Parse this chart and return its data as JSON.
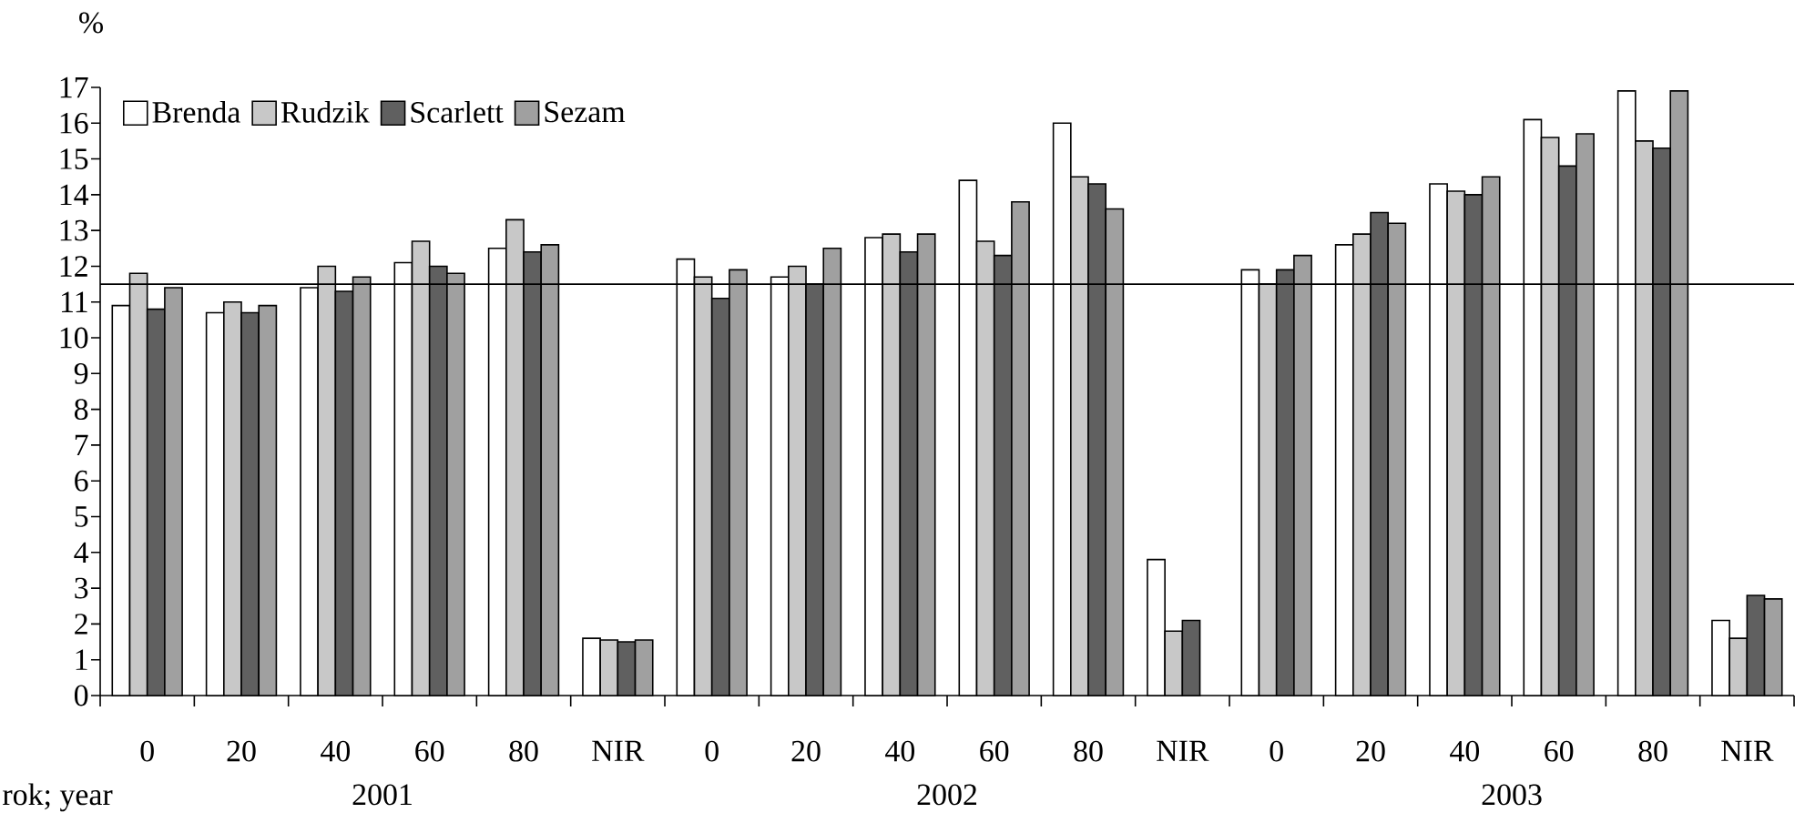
{
  "chart_data": {
    "type": "bar",
    "xlabel": "rok; year",
    "ylabel": "%",
    "categories": [
      "0",
      "20",
      "40",
      "60",
      "80",
      "NIR",
      "0",
      "20",
      "40",
      "60",
      "80",
      "NIR",
      "0",
      "20",
      "40",
      "60",
      "80",
      "NIR"
    ],
    "series": [
      {
        "name": "Brenda",
        "color": "#ffffff",
        "values": [
          10.9,
          10.7,
          11.4,
          12.1,
          12.5,
          1.6,
          12.2,
          11.7,
          12.8,
          14.4,
          16.0,
          3.8,
          11.9,
          12.6,
          14.3,
          16.1,
          16.9,
          2.1
        ]
      },
      {
        "name": "Rudzik",
        "color": "#c8c8c8",
        "values": [
          11.8,
          11.0,
          12.0,
          12.7,
          13.3,
          1.55,
          11.7,
          12.0,
          12.9,
          12.7,
          14.5,
          1.8,
          11.5,
          12.9,
          14.1,
          15.6,
          15.5,
          1.6
        ]
      },
      {
        "name": "Scarlett",
        "color": "#606060",
        "values": [
          10.8,
          10.7,
          11.3,
          12.0,
          12.4,
          1.5,
          11.1,
          11.5,
          12.4,
          12.3,
          14.3,
          2.1,
          11.9,
          13.5,
          14.0,
          14.8,
          15.3,
          2.8
        ]
      },
      {
        "name": "Sezam",
        "color": "#a0a0a0",
        "values": [
          11.4,
          10.9,
          11.7,
          11.8,
          12.6,
          1.55,
          11.9,
          12.5,
          12.9,
          13.8,
          13.6,
          null,
          12.3,
          13.2,
          14.5,
          15.7,
          16.9,
          2.7
        ]
      }
    ],
    "ylim": [
      0,
      17
    ],
    "yticks": [
      0,
      1,
      2,
      3,
      4,
      5,
      6,
      7,
      8,
      9,
      10,
      11,
      12,
      13,
      14,
      15,
      16,
      17
    ],
    "ref_lines": [
      {
        "axis": "y",
        "value": 11.5,
        "color": "#000000"
      }
    ],
    "annotations": [
      "2001",
      "2002",
      "2003"
    ],
    "legend": "top left"
  }
}
